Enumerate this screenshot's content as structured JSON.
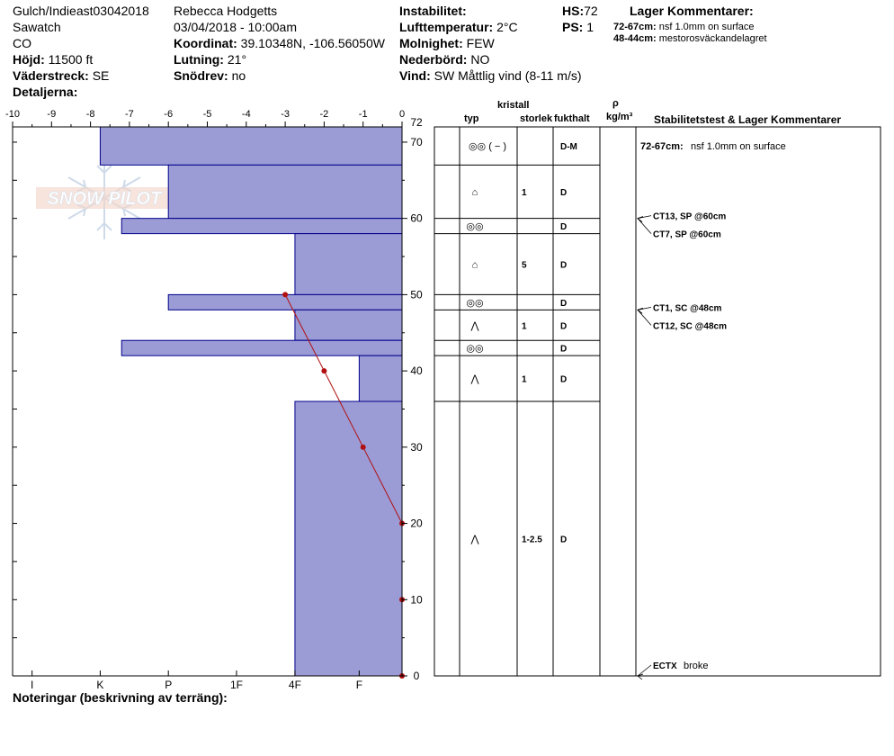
{
  "header": {
    "location": "Gulch/Indieast03042018",
    "range": "Sawatch",
    "state": "CO",
    "elevation_label": "Höjd:",
    "elevation_value": "11500 ft",
    "aspect_label": "Väderstreck:",
    "aspect_value": "SE",
    "details_label": "Detaljerna:",
    "observer": "Rebecca Hodgetts",
    "datetime": "03/04/2018 - 10:00am",
    "coord_label": "Koordinat:",
    "coord_value": "39.10348N, -106.56050W",
    "slope_label": "Lutning:",
    "slope_value": "21°",
    "drift_label": "Snödrev:",
    "drift_value": "no",
    "instability_label": "Instabilitet:",
    "airtemp_label": "Lufttemperatur:",
    "airtemp_value": "2°C",
    "sky_label": "Molnighet:",
    "sky_value": "FEW",
    "precip_label": "Nederbörd:",
    "precip_value": "NO",
    "wind_label": "Vind:",
    "wind_value": "SW  Måttlig vind (8-11 m/s)",
    "hs_label": "HS:",
    "hs_value": "72",
    "ps_label": "PS:",
    "ps_value": "1",
    "layer_comments_title": "Lager Kommentarer:",
    "layer_comments": [
      {
        "range": "72-67cm:",
        "text": "nsf 1.0mm on surface"
      },
      {
        "range": "48-44cm:",
        "text": "mestorosväckandelagret"
      }
    ]
  },
  "watermark": "SNOW PILOT",
  "table_headers": {
    "crystal": "kristall",
    "type": "typ",
    "size": "storlek",
    "moisture": "fukthalt",
    "rho": "ρ",
    "density_unit": "kg/m³",
    "stability": "Stabilitetstest & Lager Kommentarer"
  },
  "footer": {
    "notes_label": "Noteringar (beskrivning av terräng):"
  },
  "chart_data": {
    "type": "bar",
    "hs": 72,
    "temp_axis": {
      "ticks": [
        "-10",
        "-9",
        "-8",
        "-7",
        "-6",
        "-5",
        "-4",
        "-3",
        "-2",
        "-1",
        "0"
      ],
      "range": [
        -10,
        0
      ]
    },
    "height_axis": {
      "ticks": [
        "0",
        "10",
        "20",
        "30",
        "40",
        "50",
        "60",
        "70"
      ],
      "top_label": "72",
      "range": [
        0,
        72
      ]
    },
    "hardness_axis": {
      "ticks": [
        "I",
        "K",
        "P",
        "1F",
        "4F",
        "F"
      ]
    },
    "colors": {
      "layer_fill": "#9b9bd6",
      "layer_stroke": "#00008b",
      "temp": "#b01010"
    },
    "hardness_layers": [
      {
        "top": 72,
        "bottom": 67,
        "hardness": 7.75
      },
      {
        "top": 67,
        "bottom": 60,
        "hardness": 6.0
      },
      {
        "top": 60,
        "bottom": 58,
        "hardness": 7.2
      },
      {
        "top": 58,
        "bottom": 50,
        "hardness": 2.75
      },
      {
        "top": 50,
        "bottom": 48,
        "hardness": 6.0
      },
      {
        "top": 48,
        "bottom": 44,
        "hardness": 2.75
      },
      {
        "top": 44,
        "bottom": 42,
        "hardness": 7.2
      },
      {
        "top": 42,
        "bottom": 36,
        "hardness": 1.1
      },
      {
        "top": 36,
        "bottom": 0,
        "hardness": 2.75
      }
    ],
    "temperature_profile": [
      {
        "height": 50,
        "temp": -3.0
      },
      {
        "height": 40,
        "temp": -2.0
      },
      {
        "height": 30,
        "temp": -1.0
      },
      {
        "height": 20,
        "temp": 0
      },
      {
        "height": 10,
        "temp": 0
      },
      {
        "height": 0,
        "temp": 0
      }
    ],
    "layer_table": [
      {
        "top": 72,
        "bottom": 67,
        "type": "◎◎ ( − )",
        "size": "",
        "moisture": "D-M"
      },
      {
        "top": 67,
        "bottom": 60,
        "type": "⌂",
        "size": "1",
        "moisture": "D"
      },
      {
        "top": 60,
        "bottom": 58,
        "type": "◎◎",
        "size": "",
        "moisture": "D"
      },
      {
        "top": 58,
        "bottom": 50,
        "type": "⌂",
        "size": "5",
        "moisture": "D"
      },
      {
        "top": 50,
        "bottom": 48,
        "type": "◎◎",
        "size": "",
        "moisture": "D"
      },
      {
        "top": 48,
        "bottom": 44,
        "type": "⋀",
        "size": "1",
        "moisture": "D"
      },
      {
        "top": 44,
        "bottom": 42,
        "type": "◎◎",
        "size": "",
        "moisture": "D"
      },
      {
        "top": 42,
        "bottom": 36,
        "type": "⋀",
        "size": "1",
        "moisture": "D"
      },
      {
        "top": 36,
        "bottom": 0,
        "type": "⋀",
        "size": "1-2.5",
        "moisture": "D"
      }
    ],
    "layer_comment": {
      "range": "72-67cm:",
      "text": "nsf 1.0mm on surface",
      "height": 69.5
    },
    "stability_tests": [
      {
        "label": "CT13, SP @60cm",
        "height": 60,
        "slot": 0
      },
      {
        "label": "CT7, SP @60cm",
        "height": 60,
        "slot": 1
      },
      {
        "label": "CT1, SC @48cm",
        "height": 48,
        "slot": 0
      },
      {
        "label": "CT12, SC @48cm",
        "height": 48,
        "slot": 1
      },
      {
        "label": "ECTX  broke",
        "height": 0,
        "slot": 0
      }
    ]
  }
}
